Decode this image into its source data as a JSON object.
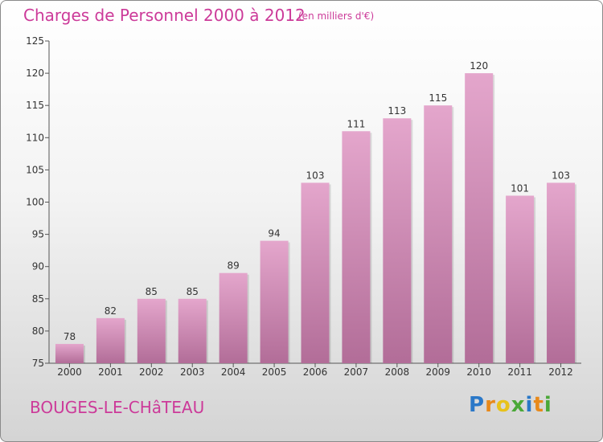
{
  "header": {
    "title": "Charges de Personnel 2000 à 2012",
    "subtitle": "(en milliers d'€)"
  },
  "footer": {
    "place": "BOUGES-LE-CHâTEAU",
    "brand": "Proxiti",
    "brand_letters": [
      {
        "ch": "P",
        "color": "#2a78c8"
      },
      {
        "ch": "r",
        "color": "#e8891a"
      },
      {
        "ch": "o",
        "color": "#e8c21a"
      },
      {
        "ch": "x",
        "color": "#4aa838"
      },
      {
        "ch": "i",
        "color": "#2a78c8"
      },
      {
        "ch": "t",
        "color": "#e8891a"
      },
      {
        "ch": "i",
        "color": "#4aa838"
      }
    ]
  },
  "colors": {
    "bar_top": "#e4a6cc",
    "bar_bottom": "#b26d98",
    "accent": "#cc3a99"
  },
  "chart_data": {
    "type": "bar",
    "title": "Charges de Personnel 2000 à 2012",
    "subtitle": "(en milliers d'€)",
    "categories": [
      "2000",
      "2001",
      "2002",
      "2003",
      "2004",
      "2005",
      "2006",
      "2007",
      "2008",
      "2009",
      "2010",
      "2011",
      "2012"
    ],
    "values": [
      78,
      82,
      85,
      85,
      89,
      94,
      103,
      111,
      113,
      115,
      120,
      101,
      103
    ],
    "ylim": [
      75,
      125
    ],
    "yticks": [
      75,
      80,
      85,
      90,
      95,
      100,
      105,
      110,
      115,
      120,
      125
    ],
    "grid": false,
    "legend": "none"
  }
}
